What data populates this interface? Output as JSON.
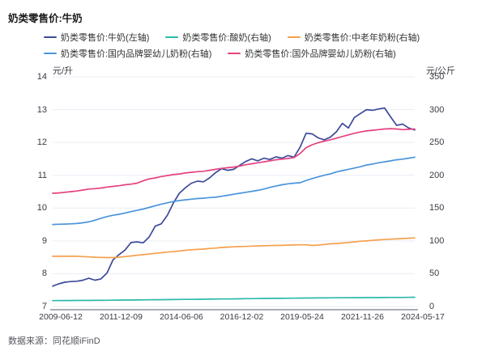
{
  "title": "奶类零售价:牛奶",
  "source": "数据来源：同花顺iFinD",
  "axes": {
    "left_unit": "元/升",
    "right_unit": "元/公斤",
    "left_ticks": [
      14,
      13,
      12,
      11,
      10,
      9,
      8,
      7
    ],
    "right_ticks": [
      350,
      300,
      250,
      200,
      150,
      100,
      50,
      0
    ],
    "x_labels": [
      "2009-06-12",
      "2011-12-09",
      "2014-06-06",
      "2016-12-02",
      "2019-05-24",
      "2021-11-26",
      "2024-05-17"
    ]
  },
  "colors": {
    "grid": "#ebedf5",
    "axis_line": "#a9adb8",
    "text": "#3a3a44"
  },
  "legend": {
    "rows": [
      [
        0,
        1,
        2
      ],
      [
        3,
        4
      ]
    ]
  },
  "chart_data": {
    "type": "line",
    "title": "奶类零售价:牛奶",
    "x_start": "2009-06-12",
    "x_end": "2024-05-17",
    "x_tick_labels": [
      "2009-06-12",
      "2011-12-09",
      "2014-06-06",
      "2016-12-02",
      "2019-05-24",
      "2021-11-26",
      "2024-05-17"
    ],
    "left_axis": {
      "label": "元/升",
      "range": [
        7,
        14
      ]
    },
    "right_axis": {
      "label": "元/公斤",
      "range": [
        0,
        350
      ]
    },
    "grid": true,
    "legend_position": "top",
    "sampling": "quarterly 2009-06 to 2024-05",
    "series": [
      {
        "name": "奶类零售价:牛奶(左轴)",
        "axis": "left",
        "color": "#3d4a99",
        "values": [
          7.62,
          7.69,
          7.74,
          7.76,
          7.77,
          7.8,
          7.86,
          7.8,
          7.84,
          8.02,
          8.42,
          8.58,
          8.72,
          8.95,
          8.97,
          8.94,
          9.12,
          9.45,
          9.52,
          9.78,
          10.15,
          10.45,
          10.62,
          10.76,
          10.82,
          10.8,
          10.92,
          11.08,
          11.2,
          11.15,
          11.18,
          11.3,
          11.42,
          11.5,
          11.44,
          11.52,
          11.48,
          11.56,
          11.52,
          11.6,
          11.55,
          11.85,
          12.28,
          12.26,
          12.14,
          12.08,
          12.16,
          12.32,
          12.58,
          12.44,
          12.76,
          12.88,
          13.0,
          12.98,
          13.02,
          13.05,
          12.78,
          12.52,
          12.56,
          12.44,
          12.38
        ]
      },
      {
        "name": "奶类零售价:酸奶(右轴)",
        "axis": "right",
        "color": "#2cb9a9",
        "values": [
          9,
          9.05,
          9.1,
          9.15,
          9.2,
          9.25,
          9.3,
          9.35,
          9.4,
          9.5,
          9.6,
          9.7,
          9.8,
          9.9,
          10,
          10.1,
          10.2,
          10.3,
          10.4,
          10.5,
          10.6,
          10.7,
          10.8,
          10.9,
          11,
          11.1,
          11.2,
          11.3,
          11.4,
          11.5,
          11.6,
          11.75,
          11.9,
          12,
          12.1,
          12.2,
          12.3,
          12.4,
          12.5,
          12.6,
          12.7,
          12.8,
          12.9,
          13,
          13.05,
          13.1,
          13.2,
          13.25,
          13.3,
          13.35,
          13.4,
          13.45,
          13.5,
          13.55,
          13.6,
          13.7,
          13.75,
          13.8,
          13.85,
          13.95,
          14
        ]
      },
      {
        "name": "奶类零售价:中老年奶粉(右轴)",
        "axis": "right",
        "color": "#f5a04e",
        "values": [
          76.5,
          76.5,
          76.5,
          76.5,
          76.5,
          76,
          75.5,
          75,
          74.8,
          74.5,
          74.5,
          75,
          76,
          77,
          78,
          79,
          80,
          81,
          82,
          83,
          83.5,
          84.5,
          85.5,
          86.5,
          87,
          87.5,
          88.5,
          89,
          90,
          90.5,
          91,
          91.3,
          91.6,
          92,
          92.3,
          92.6,
          92.8,
          93,
          93.2,
          93.5,
          93.8,
          94,
          94,
          93,
          93.5,
          94.5,
          95.5,
          96,
          96.8,
          97.5,
          98.5,
          99.5,
          100,
          100.8,
          101.5,
          102,
          102.5,
          103,
          103.5,
          104,
          104.5
        ]
      },
      {
        "name": "奶类零售价:国内品牌婴幼儿奶粉(右轴)",
        "axis": "right",
        "color": "#4b94db",
        "values": [
          125,
          125.3,
          125.6,
          126,
          126.5,
          127.5,
          129,
          131.5,
          134.5,
          137,
          139,
          140.5,
          142.5,
          144.5,
          146.5,
          148.5,
          151,
          153.5,
          156,
          158,
          160,
          161.5,
          162.5,
          163.5,
          164.5,
          165,
          166,
          166.5,
          168,
          169.5,
          171,
          172.5,
          174,
          175.5,
          177,
          179,
          181.5,
          183.5,
          185.5,
          187,
          188,
          188.5,
          192,
          195,
          197.5,
          200,
          202,
          205,
          207,
          209,
          211,
          213,
          215.5,
          217,
          219,
          220.5,
          222,
          223.5,
          224.5,
          226,
          227.5
        ]
      },
      {
        "name": "奶类零售价:国外品牌婴幼儿奶粉(右轴)",
        "axis": "right",
        "color": "#e5417f",
        "values": [
          172.5,
          173,
          174,
          175,
          176,
          177.5,
          179,
          179.5,
          180.5,
          182,
          183,
          184,
          185.5,
          186.5,
          188,
          191.5,
          194.5,
          196,
          198,
          199.5,
          201,
          202,
          203.5,
          204.5,
          205.5,
          206,
          207.5,
          209,
          210.5,
          211.5,
          212.5,
          214,
          216,
          217.5,
          219,
          220.5,
          222,
          223.5,
          224.5,
          225.5,
          227,
          233,
          242,
          246.5,
          249.5,
          252,
          254,
          256.5,
          259,
          261.5,
          264,
          266,
          267.5,
          268.5,
          269.5,
          270.5,
          271,
          270.5,
          269.5,
          270,
          270.5
        ]
      }
    ]
  }
}
